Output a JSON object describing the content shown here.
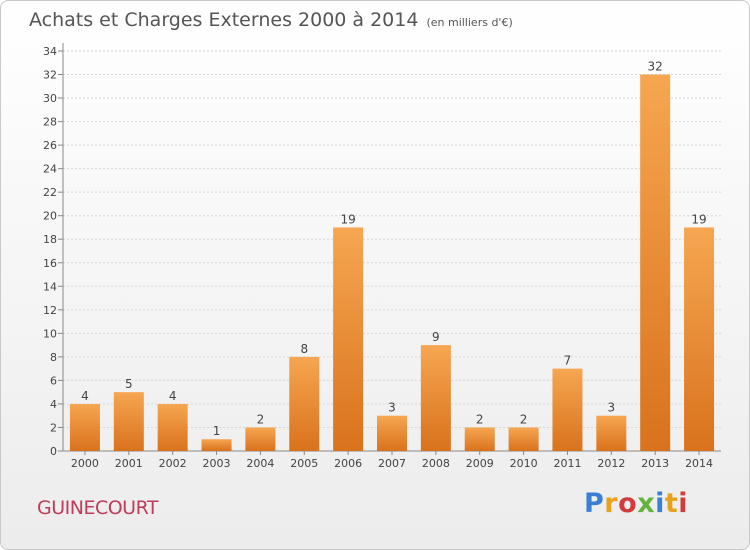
{
  "header": {
    "title": "Achats et Charges Externes 2000 à 2014",
    "unit": "(en milliers d'€)"
  },
  "footer": {
    "location": "GUINECOURT",
    "brand": "Proxiti",
    "brand_colors": [
      "#3a7fd5",
      "#e6a21c",
      "#d23c3c",
      "#63b43c",
      "#3a7fd5",
      "#e6a21c",
      "#d23c3c"
    ]
  },
  "colors": {
    "bar_top": "#f6a651",
    "bar_bottom": "#d9721c",
    "grid": "#d6d6d6",
    "axis": "#888888"
  },
  "chart_data": {
    "type": "bar",
    "categories": [
      "2000",
      "2001",
      "2002",
      "2003",
      "2004",
      "2005",
      "2006",
      "2007",
      "2008",
      "2009",
      "2010",
      "2011",
      "2012",
      "2013",
      "2014"
    ],
    "values": [
      4,
      5,
      4,
      1,
      2,
      8,
      19,
      3,
      9,
      2,
      2,
      7,
      3,
      32,
      19
    ],
    "title": "Achats et Charges Externes 2000 à 2014",
    "subtitle": "(en milliers d'€)",
    "ylim": [
      0,
      34
    ],
    "yticks": [
      0,
      2,
      4,
      6,
      8,
      10,
      12,
      14,
      16,
      18,
      20,
      22,
      24,
      26,
      28,
      30,
      32,
      34
    ],
    "grid": true,
    "legend": "none"
  }
}
